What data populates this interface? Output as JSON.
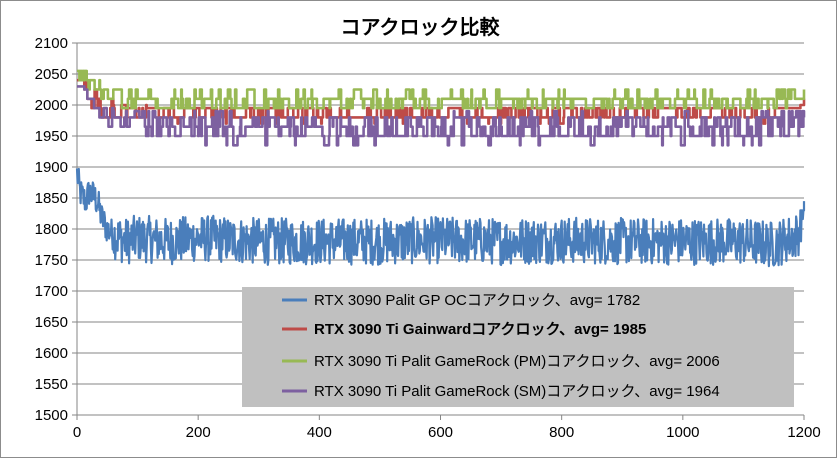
{
  "chart_data": {
    "type": "line",
    "title": "コアクロック比較",
    "xlabel": "",
    "ylabel": "",
    "xlim": [
      0,
      1200
    ],
    "ylim": [
      1500,
      2100
    ],
    "xticks": [
      0,
      200,
      400,
      600,
      800,
      1000,
      1200
    ],
    "yticks": [
      1500,
      1550,
      1600,
      1650,
      1700,
      1750,
      1800,
      1850,
      1900,
      1950,
      2000,
      2050,
      2100
    ],
    "grid": "horizontal",
    "legend_position": "bottom-right",
    "series": [
      {
        "name": "RTX 3090 Palit GP OCコアクロック、avg= 1782",
        "color": "#4a7ebb",
        "bold": false,
        "x": [
          0,
          5,
          10,
          15,
          20,
          25,
          30,
          35,
          40,
          50,
          60,
          70,
          80,
          100,
          150,
          200,
          300,
          400,
          500,
          600,
          700,
          800,
          900,
          1000,
          1100,
          1150,
          1190,
          1200
        ],
        "y": [
          1890,
          1860,
          1850,
          1845,
          1860,
          1855,
          1850,
          1840,
          1820,
          1800,
          1790,
          1785,
          1780,
          1785,
          1780,
          1785,
          1780,
          1780,
          1780,
          1782,
          1780,
          1782,
          1780,
          1780,
          1780,
          1775,
          1790,
          1845
        ],
        "min": 1700,
        "max": 1830
      },
      {
        "name": "RTX 3090 Ti Gainwardコアクロック、avg= 1985",
        "color": "#be4b48",
        "bold": true,
        "x": [
          0,
          5,
          10,
          20,
          30,
          40,
          50,
          100,
          150,
          200,
          300,
          400,
          500,
          600,
          700,
          800,
          900,
          1000,
          1100,
          1150,
          1190,
          1200
        ],
        "y": [
          2050,
          2045,
          2030,
          2020,
          2010,
          2000,
          1995,
          1990,
          1985,
          1985,
          1985,
          1985,
          1985,
          1985,
          1985,
          1985,
          1985,
          1985,
          1985,
          1985,
          2000,
          2010
        ],
        "min": 1970,
        "max": 2000
      },
      {
        "name": "RTX 3090 Ti Palit GameRock (PM)コアクロック、avg= 2006",
        "color": "#98b954",
        "bold": false,
        "x": [
          0,
          5,
          10,
          20,
          30,
          40,
          50,
          100,
          150,
          200,
          300,
          400,
          500,
          600,
          700,
          800,
          900,
          1000,
          1100,
          1150,
          1190,
          1200
        ],
        "y": [
          2055,
          2055,
          2050,
          2040,
          2030,
          2020,
          2015,
          2010,
          2006,
          2005,
          2005,
          2005,
          2005,
          2006,
          2006,
          2006,
          2006,
          2006,
          2006,
          2008,
          2020,
          2025
        ],
        "min": 1995,
        "max": 2025
      },
      {
        "name": "RTX 3090 Ti Palit GameRock (SM)コアクロック、avg= 1964",
        "color": "#7d60a0",
        "bold": false,
        "x": [
          0,
          5,
          10,
          20,
          30,
          40,
          50,
          100,
          150,
          200,
          300,
          400,
          500,
          600,
          700,
          800,
          900,
          1000,
          1100,
          1150,
          1190,
          1200
        ],
        "y": [
          2040,
          2030,
          2020,
          2010,
          2000,
          1990,
          1985,
          1975,
          1965,
          1965,
          1963,
          1963,
          1963,
          1964,
          1964,
          1964,
          1964,
          1964,
          1964,
          1965,
          1975,
          1980
        ],
        "min": 1935,
        "max": 1990
      }
    ]
  }
}
